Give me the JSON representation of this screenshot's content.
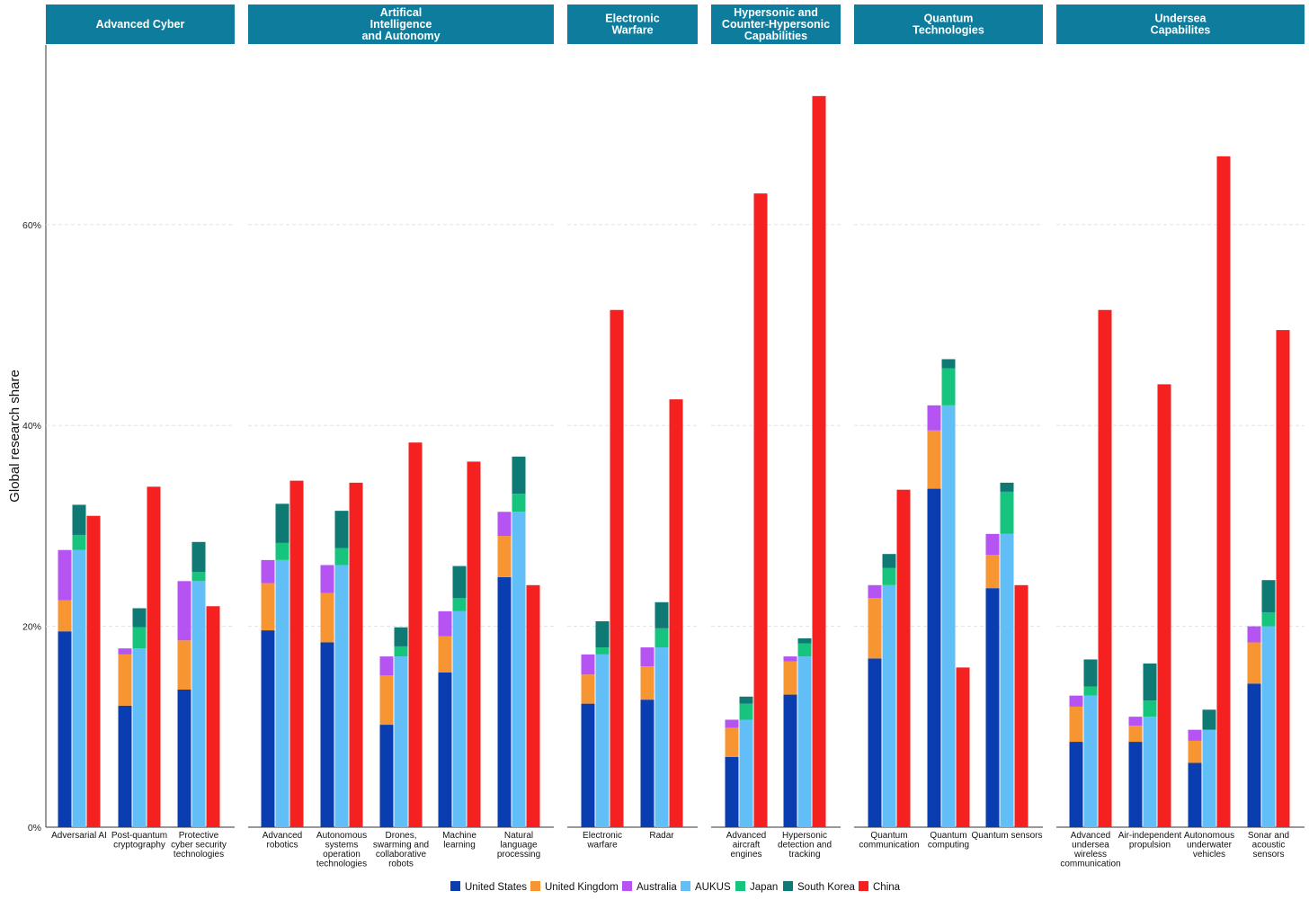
{
  "colors": {
    "facet_header": "#0E7C9C",
    "United States": "#0A3EB0",
    "United Kingdom": "#F79532",
    "Australia": "#B554F2",
    "AUKUS": "#62BEF7",
    "Japan": "#17C47E",
    "South Korea": "#0E7A73",
    "China": "#F52121"
  },
  "chart_data": {
    "type": "bar",
    "ylabel": "Global research share",
    "ylim": [
      0,
      78
    ],
    "yticks": [
      "0%",
      "20%",
      "40%",
      "60%"
    ],
    "ytick_values": [
      0,
      20,
      40,
      60
    ],
    "legend": {
      "placement": "bottom",
      "entries": [
        "United States",
        "United Kingdom",
        "Australia",
        "AUKUS",
        "Japan",
        "South Korea",
        "China"
      ]
    },
    "facets": [
      {
        "title_lines": [
          "Advanced Cyber"
        ],
        "categories": [
          {
            "label_lines": [
              "Adversarial AI"
            ],
            "us": 19.5,
            "uk": 3.1,
            "au": 5.0,
            "jp": 1.5,
            "kr": 3.0,
            "cn": 31.0
          },
          {
            "label_lines": [
              "Post-quantum",
              "cryptography"
            ],
            "us": 12.1,
            "uk": 5.1,
            "au": 0.6,
            "jp": 2.1,
            "kr": 1.9,
            "cn": 33.9
          },
          {
            "label_lines": [
              "Protective",
              "cyber security",
              "technologies"
            ],
            "us": 13.7,
            "uk": 4.9,
            "au": 5.9,
            "jp": 0.9,
            "kr": 3.0,
            "cn": 22.0
          }
        ]
      },
      {
        "title_lines": [
          "Artifical",
          "Intelligence",
          "and Autonomy"
        ],
        "categories": [
          {
            "label_lines": [
              "Advanced",
              "robotics"
            ],
            "us": 19.6,
            "uk": 4.7,
            "au": 2.3,
            "jp": 1.7,
            "kr": 3.9,
            "cn": 34.5
          },
          {
            "label_lines": [
              "Autonomous",
              "systems",
              "operation",
              "technologies"
            ],
            "us": 18.4,
            "uk": 4.9,
            "au": 2.8,
            "jp": 1.7,
            "kr": 3.7,
            "cn": 34.3
          },
          {
            "label_lines": [
              "Drones,",
              "swarming and",
              "collaborative",
              "robots"
            ],
            "us": 10.2,
            "uk": 4.9,
            "au": 1.9,
            "jp": 1.0,
            "kr": 1.9,
            "cn": 38.3
          },
          {
            "label_lines": [
              "Machine",
              "learning"
            ],
            "us": 15.4,
            "uk": 3.6,
            "au": 2.5,
            "jp": 1.3,
            "kr": 3.2,
            "cn": 36.4
          },
          {
            "label_lines": [
              "Natural",
              "language",
              "processing"
            ],
            "us": 24.9,
            "uk": 4.1,
            "au": 2.4,
            "jp": 1.8,
            "kr": 3.7,
            "cn": 24.1
          }
        ]
      },
      {
        "title_lines": [
          "Electronic",
          "Warfare"
        ],
        "categories": [
          {
            "label_lines": [
              "Electronic",
              "warfare"
            ],
            "us": 12.3,
            "uk": 2.9,
            "au": 2.0,
            "jp": 0.7,
            "kr": 2.6,
            "cn": 51.5
          },
          {
            "label_lines": [
              "Radar"
            ],
            "us": 12.7,
            "uk": 3.3,
            "au": 1.9,
            "jp": 1.9,
            "kr": 2.6,
            "cn": 42.6
          }
        ]
      },
      {
        "title_lines": [
          "Hypersonic and",
          "Counter-Hypersonic",
          "Capabilities"
        ],
        "categories": [
          {
            "label_lines": [
              "Advanced",
              "aircraft",
              "engines"
            ],
            "us": 7.0,
            "uk": 2.9,
            "au": 0.8,
            "jp": 1.6,
            "kr": 0.7,
            "cn": 63.1
          },
          {
            "label_lines": [
              "Hypersonic",
              "detection and",
              "tracking"
            ],
            "us": 13.2,
            "uk": 3.3,
            "au": 0.5,
            "jp": 1.3,
            "kr": 0.5,
            "cn": 72.8
          }
        ]
      },
      {
        "title_lines": [
          "Quantum",
          "Technologies"
        ],
        "categories": [
          {
            "label_lines": [
              "Quantum",
              "communication"
            ],
            "us": 16.8,
            "uk": 6.0,
            "au": 1.3,
            "jp": 1.7,
            "kr": 1.4,
            "cn": 33.6
          },
          {
            "label_lines": [
              "Quantum",
              "computing"
            ],
            "us": 33.7,
            "uk": 5.8,
            "au": 2.5,
            "jp": 3.7,
            "kr": 0.9,
            "cn": 15.9
          },
          {
            "label_lines": [
              "Quantum sensors"
            ],
            "us": 23.8,
            "uk": 3.3,
            "au": 2.1,
            "jp": 4.2,
            "kr": 0.9,
            "cn": 24.1
          }
        ]
      },
      {
        "title_lines": [
          "Undersea",
          "Capabilites"
        ],
        "categories": [
          {
            "label_lines": [
              "Advanced",
              "undersea",
              "wireless",
              "communication"
            ],
            "us": 8.5,
            "uk": 3.5,
            "au": 1.1,
            "jp": 0.9,
            "kr": 2.7,
            "cn": 51.5
          },
          {
            "label_lines": [
              "Air-independent",
              "propulsion"
            ],
            "us": 8.5,
            "uk": 1.6,
            "au": 0.9,
            "jp": 1.6,
            "kr": 3.7,
            "cn": 44.1
          },
          {
            "label_lines": [
              "Autonomous",
              "underwater",
              "vehicles"
            ],
            "us": 6.4,
            "uk": 2.2,
            "au": 1.1,
            "jp": 0.0,
            "kr": 2.0,
            "cn": 66.8
          },
          {
            "label_lines": [
              "Sonar and",
              "acoustic",
              "sensors"
            ],
            "us": 14.3,
            "uk": 4.1,
            "au": 1.6,
            "jp": 1.4,
            "kr": 3.2,
            "cn": 49.5
          }
        ]
      }
    ]
  }
}
